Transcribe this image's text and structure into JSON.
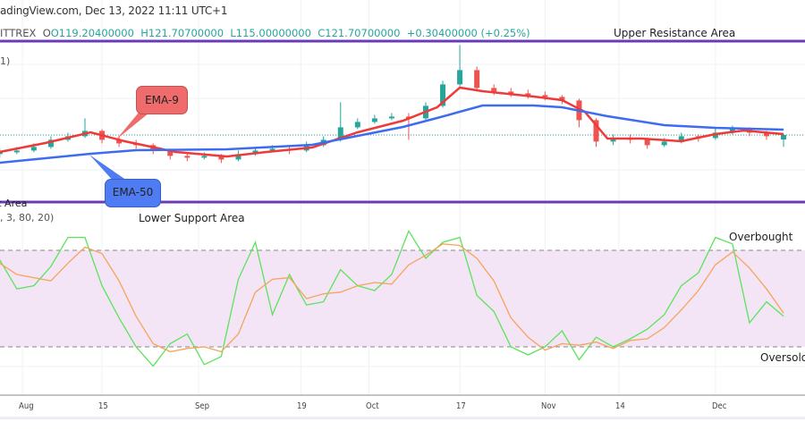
{
  "header": {
    "source": "adingView.com, Dec 13, 2022 11:11 UTC+1",
    "symbol_fragment": "ITTREX",
    "open": "O119.20400000",
    "high": "H121.70700000",
    "low": "L115.00000000",
    "close": "C121.70700000",
    "change": "+0.30400000 (+0.25%)"
  },
  "indicators": {
    "ema_legend_fragment": "1)",
    "stoch_legend_fragment": ", 3, 80, 20)"
  },
  "annotations": {
    "upper_resistance": "Upper Resistance Area",
    "lower_support": "Lower Support Area",
    "lower_support_cut": "ort Area",
    "ema9": "EMA-9",
    "ema50": "EMA-50",
    "overbought": "Overbought",
    "oversold": "Oversold"
  },
  "colors": {
    "up": "#26a69a",
    "down": "#ef5350",
    "ema9": "#ef3a3a",
    "ema50": "#3d6cf0",
    "zone_lines": "#6a3bb5",
    "stoch_k": "#5be35b",
    "stoch_d": "#f7a35c",
    "band": "#f3e5f5",
    "ema9_callout": "#f06b6b",
    "ema50_callout": "#4f7cf2"
  },
  "chart_data": [
    {
      "type": "candlestick",
      "xlabels": [
        "Aug",
        "15",
        "Sep",
        "19",
        "Oct",
        "17",
        "Nov",
        "14",
        "Dec"
      ],
      "xtick_dates": [
        "08-01",
        "08-15",
        "09-01",
        "09-19",
        "10-01",
        "10-17",
        "11-01",
        "11-14",
        "12-01"
      ],
      "last_price": 121.707,
      "resistance_level": 174,
      "support_level": 84,
      "candles": [
        [
          "07-28",
          111,
          114,
          109,
          112
        ],
        [
          "07-31",
          112,
          115,
          111,
          113
        ],
        [
          "08-03",
          113,
          117,
          112,
          115
        ],
        [
          "08-06",
          115,
          121,
          114,
          119
        ],
        [
          "08-09",
          119,
          123,
          118,
          121
        ],
        [
          "08-12",
          121,
          131,
          120,
          124
        ],
        [
          "08-15",
          124,
          125,
          117,
          119
        ],
        [
          "08-18",
          119,
          121,
          115,
          117
        ],
        [
          "08-21",
          117,
          119,
          114,
          116
        ],
        [
          "08-24",
          116,
          117,
          111,
          113
        ],
        [
          "08-27",
          113,
          114,
          108,
          110
        ],
        [
          "08-30",
          110,
          112,
          107,
          109
        ],
        [
          "09-02",
          109,
          112,
          108,
          110
        ],
        [
          "09-05",
          110,
          111,
          106,
          108
        ],
        [
          "09-08",
          108,
          113,
          107,
          111
        ],
        [
          "09-11",
          111,
          115,
          110,
          113
        ],
        [
          "09-14",
          113,
          116,
          112,
          114
        ],
        [
          "09-17",
          114,
          115,
          111,
          113
        ],
        [
          "09-20",
          113,
          118,
          112,
          116
        ],
        [
          "09-23",
          116,
          121,
          115,
          119
        ],
        [
          "09-26",
          119,
          140,
          118,
          126
        ],
        [
          "09-29",
          126,
          131,
          125,
          129
        ],
        [
          "10-02",
          129,
          133,
          128,
          131
        ],
        [
          "10-05",
          131,
          134,
          130,
          132
        ],
        [
          "10-08",
          132,
          134,
          119,
          131
        ],
        [
          "10-11",
          131,
          140,
          130,
          138
        ],
        [
          "10-14",
          138,
          152,
          137,
          150
        ],
        [
          "10-17",
          150,
          172,
          149,
          158
        ],
        [
          "10-20",
          158,
          160,
          146,
          148
        ],
        [
          "10-23",
          148,
          150,
          144,
          146
        ],
        [
          "10-26",
          146,
          148,
          143,
          145
        ],
        [
          "10-29",
          145,
          147,
          142,
          144
        ],
        [
          "11-01",
          144,
          146,
          141,
          143
        ],
        [
          "11-04",
          143,
          144,
          139,
          141
        ],
        [
          "11-07",
          141,
          142,
          126,
          130
        ],
        [
          "11-10",
          130,
          131,
          115,
          118
        ],
        [
          "11-13",
          118,
          122,
          116,
          120
        ],
        [
          "11-16",
          120,
          122,
          117,
          119
        ],
        [
          "11-19",
          119,
          120,
          114,
          116
        ],
        [
          "11-22",
          116,
          120,
          115,
          118
        ],
        [
          "11-25",
          118,
          123,
          117,
          121
        ],
        [
          "11-28",
          121,
          122,
          118,
          120
        ],
        [
          "12-01",
          120,
          126,
          119,
          123
        ],
        [
          "12-04",
          123,
          127,
          122,
          125
        ],
        [
          "12-07",
          125,
          126,
          121,
          123
        ],
        [
          "12-10",
          123,
          124,
          119,
          121
        ],
        [
          "12-13",
          119.204,
          121.707,
          115,
          121.707
        ]
      ],
      "series": [
        {
          "name": "EMA-9",
          "points": [
            [
              "07-28",
              112.2
            ],
            [
              "08-05",
              117.2
            ],
            [
              "08-13",
              123.2
            ],
            [
              "08-19",
              118.2
            ],
            [
              "08-28",
              112.2
            ],
            [
              "09-06",
              109.7
            ],
            [
              "09-13",
              112.2
            ],
            [
              "09-21",
              114.7
            ],
            [
              "09-29",
              123.2
            ],
            [
              "10-07",
              129.7
            ],
            [
              "10-13",
              137.2
            ],
            [
              "10-17",
              148.2
            ],
            [
              "10-21",
              146.2
            ],
            [
              "10-30",
              143.2
            ],
            [
              "11-04",
              141.2
            ],
            [
              "11-08",
              134.7
            ],
            [
              "11-12",
              119.7
            ],
            [
              "11-18",
              119.7
            ],
            [
              "11-25",
              118.2
            ],
            [
              "12-01",
              122.2
            ],
            [
              "12-06",
              124.2
            ],
            [
              "12-13",
              122.2
            ]
          ]
        },
        {
          "name": "EMA-50",
          "points": [
            [
              "07-28",
              106.2
            ],
            [
              "08-13",
              111.2
            ],
            [
              "08-21",
              113.2
            ],
            [
              "09-06",
              113.7
            ],
            [
              "09-21",
              116.2
            ],
            [
              "09-29",
              121.2
            ],
            [
              "10-07",
              126.2
            ],
            [
              "10-13",
              131.2
            ],
            [
              "10-21",
              138.2
            ],
            [
              "10-30",
              138.2
            ],
            [
              "11-04",
              137.2
            ],
            [
              "11-12",
              132.2
            ],
            [
              "11-22",
              127.2
            ],
            [
              "12-01",
              125.7
            ],
            [
              "12-13",
              124.7
            ]
          ]
        }
      ]
    },
    {
      "type": "line",
      "levels": {
        "overbought": 80,
        "oversold": 20
      },
      "ylim": [
        0,
        100
      ],
      "dates": [
        "07-28",
        "07-31",
        "08-03",
        "08-06",
        "08-09",
        "08-12",
        "08-15",
        "08-18",
        "08-21",
        "08-24",
        "08-27",
        "08-30",
        "09-02",
        "09-05",
        "09-08",
        "09-11",
        "09-14",
        "09-17",
        "09-20",
        "09-23",
        "09-26",
        "09-29",
        "10-02",
        "10-05",
        "10-08",
        "10-11",
        "10-14",
        "10-17",
        "10-20",
        "10-23",
        "10-26",
        "10-29",
        "11-01",
        "11-04",
        "11-07",
        "11-10",
        "11-13",
        "11-16",
        "11-19",
        "11-22",
        "11-25",
        "11-28",
        "12-01",
        "12-04",
        "12-07",
        "12-10",
        "12-13"
      ],
      "series": [
        {
          "values": [
            74,
            56,
            58,
            70,
            88,
            88,
            58,
            38,
            20,
            8,
            22,
            28,
            9,
            14,
            62,
            85,
            40,
            65,
            46,
            48,
            68,
            58,
            55,
            65,
            92,
            75,
            85,
            88,
            52,
            42,
            20,
            15,
            20,
            30,
            12,
            26,
            20,
            25,
            31,
            40,
            58,
            66,
            88,
            84,
            35,
            48,
            39
          ]
        },
        {
          "values": [
            72,
            65,
            63,
            61,
            72,
            82,
            78,
            61,
            39,
            22,
            17,
            19,
            20,
            17,
            28,
            54,
            62,
            63,
            50,
            53,
            54,
            58,
            60,
            59,
            71,
            77,
            84,
            83,
            75,
            61,
            38,
            26,
            18,
            22,
            21,
            23,
            19,
            24,
            25,
            32,
            43,
            55,
            71,
            79,
            69,
            56,
            41
          ]
        }
      ]
    }
  ]
}
